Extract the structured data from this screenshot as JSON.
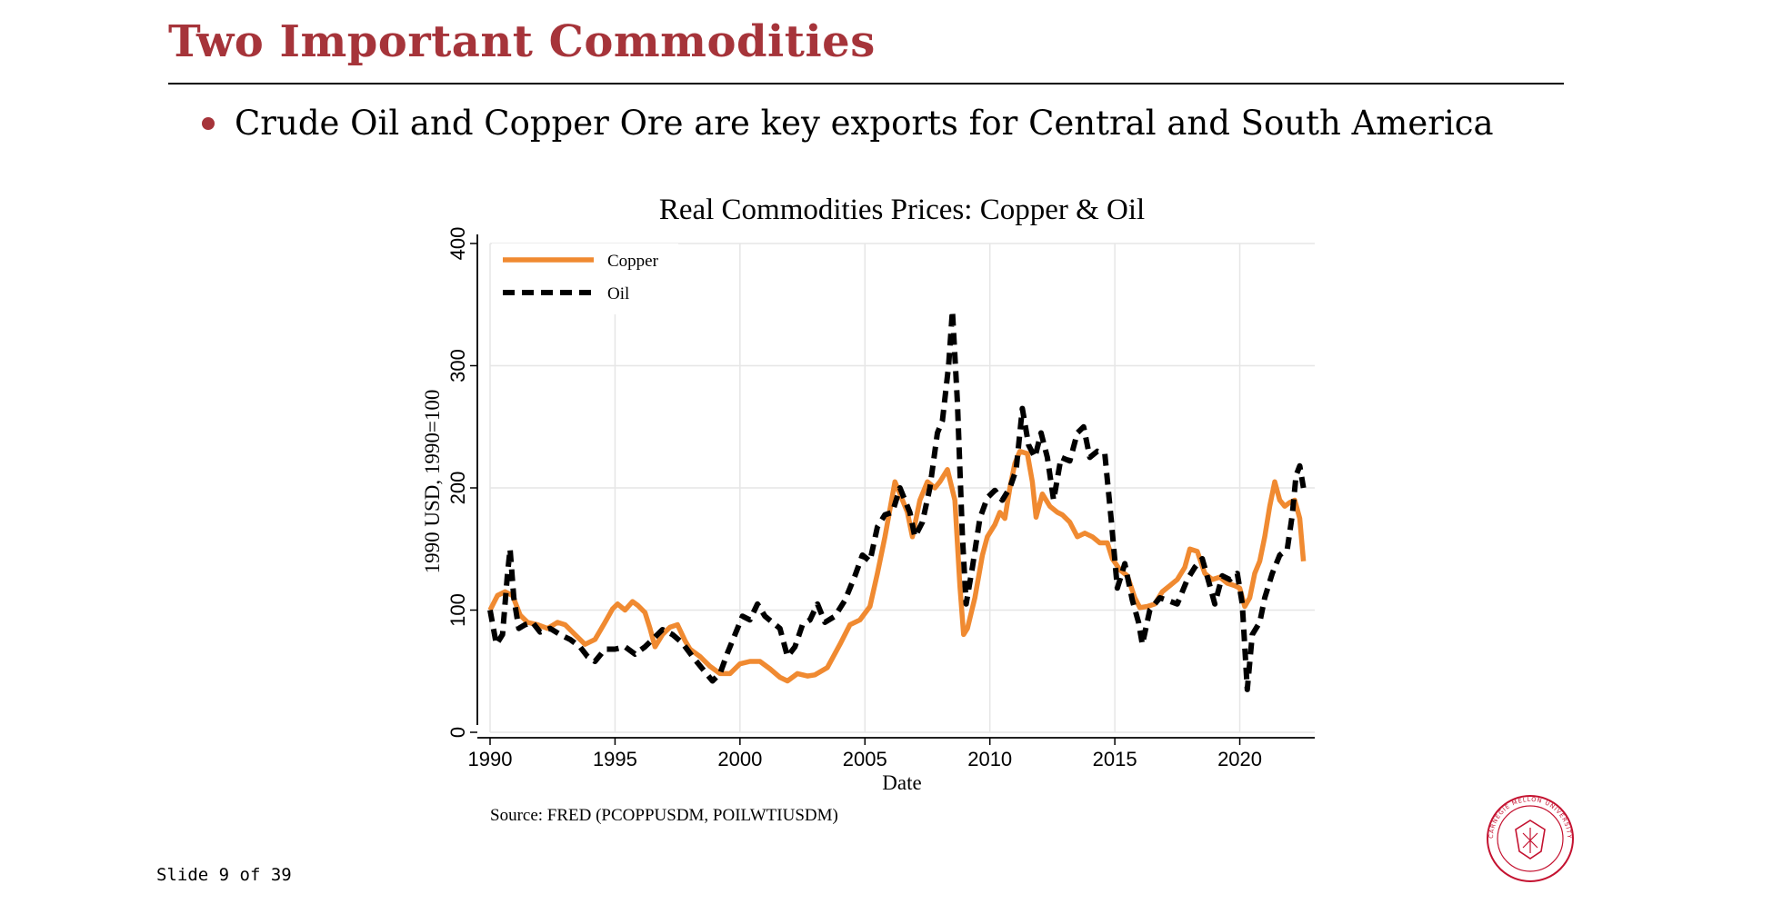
{
  "slide": {
    "title": "Two Important Commodities",
    "bullet": "Crude Oil and Copper Ore are key exports for Central and South America",
    "counter": "Slide 9 of 39",
    "accent_color": "#a6343a",
    "seal_text": "CARNEGIE MELLON UNIVERSITY"
  },
  "chart_data": {
    "type": "line",
    "title": "Real Commodities Prices: Copper & Oil",
    "xlabel": "Date",
    "ylabel": "1990 USD, 1990=100",
    "source": "Source: FRED (PCOPPUSDM,  POILWTIUSDM)",
    "xlim": [
      1990,
      2023
    ],
    "ylim": [
      0,
      400
    ],
    "x_ticks": [
      1990,
      1995,
      2000,
      2005,
      2010,
      2015,
      2020
    ],
    "y_ticks": [
      0,
      100,
      200,
      300,
      400
    ],
    "grid": true,
    "legend_position": "top-left",
    "series": [
      {
        "name": "Copper",
        "color": "#f08a31",
        "style": "solid",
        "points": [
          [
            1990.0,
            100
          ],
          [
            1990.3,
            112
          ],
          [
            1990.6,
            115
          ],
          [
            1990.9,
            112
          ],
          [
            1991.2,
            96
          ],
          [
            1991.5,
            90
          ],
          [
            1991.9,
            88
          ],
          [
            1992.3,
            85
          ],
          [
            1992.7,
            90
          ],
          [
            1993.0,
            88
          ],
          [
            1993.4,
            80
          ],
          [
            1993.8,
            72
          ],
          [
            1994.2,
            76
          ],
          [
            1994.6,
            90
          ],
          [
            1994.9,
            101
          ],
          [
            1995.1,
            105
          ],
          [
            1995.4,
            100
          ],
          [
            1995.7,
            107
          ],
          [
            1995.9,
            104
          ],
          [
            1996.2,
            98
          ],
          [
            1996.4,
            85
          ],
          [
            1996.6,
            70
          ],
          [
            1996.9,
            80
          ],
          [
            1997.2,
            86
          ],
          [
            1997.5,
            88
          ],
          [
            1997.8,
            75
          ],
          [
            1998.0,
            68
          ],
          [
            1998.4,
            62
          ],
          [
            1998.8,
            54
          ],
          [
            1999.2,
            48
          ],
          [
            1999.6,
            48
          ],
          [
            2000.0,
            56
          ],
          [
            2000.4,
            58
          ],
          [
            2000.8,
            58
          ],
          [
            2001.2,
            52
          ],
          [
            2001.6,
            45
          ],
          [
            2001.9,
            42
          ],
          [
            2002.3,
            48
          ],
          [
            2002.7,
            46
          ],
          [
            2003.0,
            47
          ],
          [
            2003.5,
            53
          ],
          [
            2004.0,
            72
          ],
          [
            2004.4,
            88
          ],
          [
            2004.8,
            92
          ],
          [
            2005.2,
            103
          ],
          [
            2005.5,
            130
          ],
          [
            2005.8,
            160
          ],
          [
            2006.2,
            205
          ],
          [
            2006.4,
            195
          ],
          [
            2006.7,
            180
          ],
          [
            2006.9,
            160
          ],
          [
            2007.2,
            190
          ],
          [
            2007.5,
            205
          ],
          [
            2007.8,
            200
          ],
          [
            2008.0,
            205
          ],
          [
            2008.3,
            215
          ],
          [
            2008.6,
            190
          ],
          [
            2008.8,
            120
          ],
          [
            2008.95,
            80
          ],
          [
            2009.1,
            85
          ],
          [
            2009.4,
            110
          ],
          [
            2009.7,
            145
          ],
          [
            2009.9,
            160
          ],
          [
            2010.2,
            170
          ],
          [
            2010.4,
            180
          ],
          [
            2010.6,
            175
          ],
          [
            2010.8,
            200
          ],
          [
            2011.0,
            220
          ],
          [
            2011.2,
            230
          ],
          [
            2011.5,
            228
          ],
          [
            2011.7,
            205
          ],
          [
            2011.85,
            176
          ],
          [
            2012.1,
            195
          ],
          [
            2012.4,
            185
          ],
          [
            2012.7,
            180
          ],
          [
            2012.9,
            178
          ],
          [
            2013.2,
            172
          ],
          [
            2013.5,
            160
          ],
          [
            2013.8,
            163
          ],
          [
            2014.1,
            160
          ],
          [
            2014.4,
            155
          ],
          [
            2014.7,
            155
          ],
          [
            2014.9,
            142
          ],
          [
            2015.2,
            133
          ],
          [
            2015.5,
            128
          ],
          [
            2015.8,
            110
          ],
          [
            2016.0,
            102
          ],
          [
            2016.3,
            103
          ],
          [
            2016.6,
            105
          ],
          [
            2016.9,
            115
          ],
          [
            2017.2,
            120
          ],
          [
            2017.5,
            125
          ],
          [
            2017.8,
            135
          ],
          [
            2018.0,
            150
          ],
          [
            2018.3,
            148
          ],
          [
            2018.6,
            130
          ],
          [
            2018.9,
            125
          ],
          [
            2019.2,
            127
          ],
          [
            2019.5,
            122
          ],
          [
            2019.8,
            120
          ],
          [
            2020.0,
            118
          ],
          [
            2020.2,
            103
          ],
          [
            2020.4,
            110
          ],
          [
            2020.6,
            130
          ],
          [
            2020.8,
            140
          ],
          [
            2021.0,
            160
          ],
          [
            2021.2,
            185
          ],
          [
            2021.4,
            205
          ],
          [
            2021.6,
            190
          ],
          [
            2021.8,
            185
          ],
          [
            2022.0,
            188
          ],
          [
            2022.2,
            190
          ],
          [
            2022.4,
            175
          ],
          [
            2022.55,
            140
          ]
        ]
      },
      {
        "name": "Oil",
        "color": "#000000",
        "style": "dashed",
        "points": [
          [
            1990.0,
            100
          ],
          [
            1990.25,
            72
          ],
          [
            1990.5,
            80
          ],
          [
            1990.7,
            130
          ],
          [
            1990.8,
            150
          ],
          [
            1990.95,
            110
          ],
          [
            1991.15,
            85
          ],
          [
            1991.4,
            88
          ],
          [
            1991.7,
            90
          ],
          [
            1992.0,
            82
          ],
          [
            1992.4,
            85
          ],
          [
            1992.8,
            80
          ],
          [
            1993.2,
            76
          ],
          [
            1993.6,
            70
          ],
          [
            1993.9,
            62
          ],
          [
            1994.2,
            58
          ],
          [
            1994.6,
            68
          ],
          [
            1995.0,
            68
          ],
          [
            1995.4,
            70
          ],
          [
            1995.8,
            64
          ],
          [
            1996.2,
            70
          ],
          [
            1996.6,
            78
          ],
          [
            1996.9,
            84
          ],
          [
            1997.3,
            80
          ],
          [
            1997.7,
            73
          ],
          [
            1998.1,
            62
          ],
          [
            1998.5,
            52
          ],
          [
            1998.9,
            42
          ],
          [
            1999.2,
            48
          ],
          [
            1999.5,
            65
          ],
          [
            1999.8,
            80
          ],
          [
            2000.1,
            95
          ],
          [
            2000.4,
            92
          ],
          [
            2000.7,
            105
          ],
          [
            2001.0,
            95
          ],
          [
            2001.3,
            90
          ],
          [
            2001.6,
            85
          ],
          [
            2001.9,
            62
          ],
          [
            2002.2,
            70
          ],
          [
            2002.5,
            88
          ],
          [
            2002.8,
            92
          ],
          [
            2003.1,
            105
          ],
          [
            2003.4,
            90
          ],
          [
            2003.8,
            95
          ],
          [
            2004.2,
            108
          ],
          [
            2004.6,
            128
          ],
          [
            2004.9,
            145
          ],
          [
            2005.2,
            140
          ],
          [
            2005.5,
            168
          ],
          [
            2005.8,
            178
          ],
          [
            2006.1,
            180
          ],
          [
            2006.4,
            200
          ],
          [
            2006.8,
            180
          ],
          [
            2007.0,
            160
          ],
          [
            2007.3,
            172
          ],
          [
            2007.6,
            200
          ],
          [
            2007.9,
            245
          ],
          [
            2008.1,
            255
          ],
          [
            2008.35,
            300
          ],
          [
            2008.5,
            345
          ],
          [
            2008.7,
            270
          ],
          [
            2008.9,
            160
          ],
          [
            2009.05,
            105
          ],
          [
            2009.3,
            135
          ],
          [
            2009.6,
            175
          ],
          [
            2009.9,
            192
          ],
          [
            2010.2,
            198
          ],
          [
            2010.5,
            190
          ],
          [
            2010.8,
            200
          ],
          [
            2011.05,
            215
          ],
          [
            2011.3,
            265
          ],
          [
            2011.55,
            235
          ],
          [
            2011.8,
            225
          ],
          [
            2012.05,
            245
          ],
          [
            2012.3,
            225
          ],
          [
            2012.55,
            190
          ],
          [
            2012.85,
            225
          ],
          [
            2013.2,
            222
          ],
          [
            2013.5,
            245
          ],
          [
            2013.75,
            250
          ],
          [
            2014.0,
            225
          ],
          [
            2014.3,
            230
          ],
          [
            2014.6,
            228
          ],
          [
            2014.85,
            175
          ],
          [
            2015.1,
            118
          ],
          [
            2015.4,
            138
          ],
          [
            2015.7,
            108
          ],
          [
            2015.95,
            90
          ],
          [
            2016.1,
            72
          ],
          [
            2016.4,
            100
          ],
          [
            2016.8,
            110
          ],
          [
            2017.1,
            108
          ],
          [
            2017.5,
            105
          ],
          [
            2017.9,
            125
          ],
          [
            2018.2,
            135
          ],
          [
            2018.5,
            142
          ],
          [
            2018.8,
            120
          ],
          [
            2019.0,
            105
          ],
          [
            2019.3,
            128
          ],
          [
            2019.6,
            125
          ],
          [
            2019.9,
            130
          ],
          [
            2020.1,
            105
          ],
          [
            2020.3,
            35
          ],
          [
            2020.5,
            80
          ],
          [
            2020.8,
            90
          ],
          [
            2021.0,
            110
          ],
          [
            2021.3,
            130
          ],
          [
            2021.6,
            145
          ],
          [
            2021.9,
            150
          ],
          [
            2022.1,
            178
          ],
          [
            2022.25,
            210
          ],
          [
            2022.4,
            218
          ],
          [
            2022.55,
            200
          ]
        ]
      }
    ]
  }
}
